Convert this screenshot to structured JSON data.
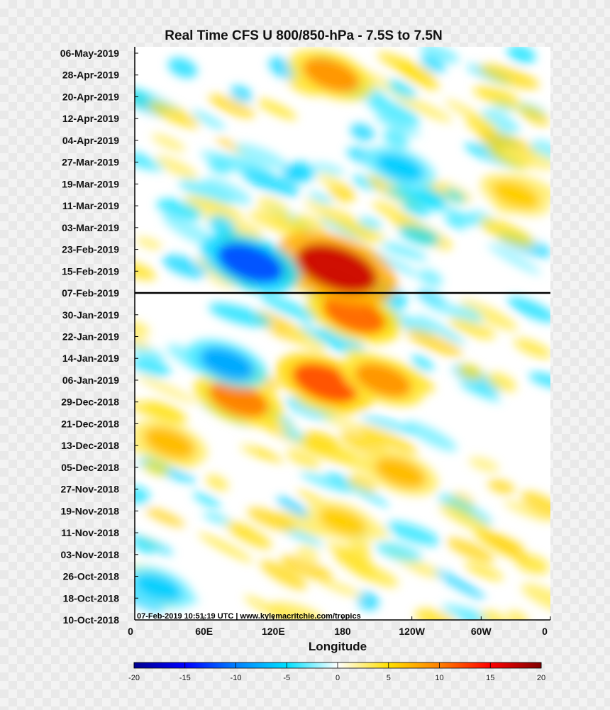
{
  "chart_data": {
    "type": "heatmap",
    "title": "Real Time CFS U 800/850-hPa - 7.5S to 7.5N",
    "xlabel": "Longitude",
    "ylabel": "",
    "x_ticks": [
      "0",
      "60E",
      "120E",
      "180",
      "120W",
      "60W",
      "0"
    ],
    "x_tick_values": [
      0,
      60,
      120,
      180,
      240,
      300,
      360
    ],
    "xlim": [
      0,
      360
    ],
    "y_ticks": [
      "06-May-2019",
      "28-Apr-2019",
      "20-Apr-2019",
      "12-Apr-2019",
      "04-Apr-2019",
      "27-Mar-2019",
      "19-Mar-2019",
      "11-Mar-2019",
      "03-Mar-2019",
      "23-Feb-2019",
      "15-Feb-2019",
      "07-Feb-2019",
      "30-Jan-2019",
      "22-Jan-2019",
      "14-Jan-2019",
      "06-Jan-2019",
      "29-Dec-2018",
      "21-Dec-2018",
      "13-Dec-2018",
      "05-Dec-2018",
      "27-Nov-2018",
      "19-Nov-2018",
      "11-Nov-2018",
      "03-Nov-2018",
      "26-Oct-2018",
      "18-Oct-2018",
      "10-Oct-2018"
    ],
    "ylim": [
      "10-Oct-2018",
      "06-May-2019"
    ],
    "reference_line": "07-Feb-2019",
    "colorbar": {
      "ticks": [
        -20,
        -15,
        -10,
        -5,
        0,
        5,
        10,
        15,
        20
      ],
      "range": [
        -20,
        20
      ],
      "colors": [
        "#00008f",
        "#0000ff",
        "#0080ff",
        "#00e0ff",
        "#ffffff",
        "#ffe000",
        "#ff8000",
        "#ff0000",
        "#800000"
      ]
    },
    "features": [
      {
        "lon": 30,
        "date": "2018-12-14",
        "u": 7
      },
      {
        "lon": 90,
        "date": "2018-12-30",
        "u": 10
      },
      {
        "lon": 165,
        "date": "2019-01-05",
        "u": 12
      },
      {
        "lon": 215,
        "date": "2019-01-06",
        "u": 9
      },
      {
        "lon": 190,
        "date": "2019-01-30",
        "u": 11
      },
      {
        "lon": 175,
        "date": "2019-02-16",
        "u": 17
      },
      {
        "lon": 170,
        "date": "2019-04-28",
        "u": 9
      },
      {
        "lon": 100,
        "date": "2019-02-18",
        "u": -12
      },
      {
        "lon": 80,
        "date": "2019-01-12",
        "u": -8
      },
      {
        "lon": 230,
        "date": "2019-03-25",
        "u": -6
      },
      {
        "lon": 20,
        "date": "2018-10-22",
        "u": -6
      },
      {
        "lon": 180,
        "date": "2018-11-15",
        "u": 6
      },
      {
        "lon": 230,
        "date": "2018-12-03",
        "u": 7
      },
      {
        "lon": 330,
        "date": "2019-03-15",
        "u": 6
      }
    ]
  },
  "credit": "07-Feb-2019 10:51:19 UTC | www.kylemacritchie.com/tropics"
}
